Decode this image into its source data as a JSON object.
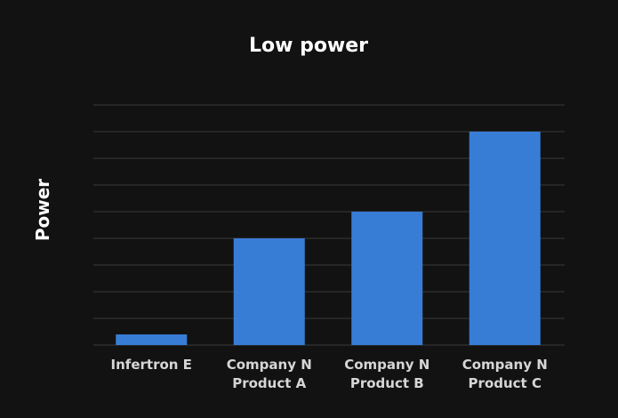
{
  "chart_data": {
    "type": "bar",
    "title": "Low power",
    "ylabel": "Power",
    "xlabel": "",
    "categories": [
      [
        "Infertron E"
      ],
      [
        "Company N",
        "Product A"
      ],
      [
        "Company N",
        "Product B"
      ],
      [
        "Company N",
        "Product C"
      ]
    ],
    "values": [
      0.4,
      4.0,
      5.0,
      8.0
    ],
    "ylim": [
      0,
      9
    ],
    "grid": true,
    "bar_color": "#377dd6",
    "background": "#121212"
  }
}
